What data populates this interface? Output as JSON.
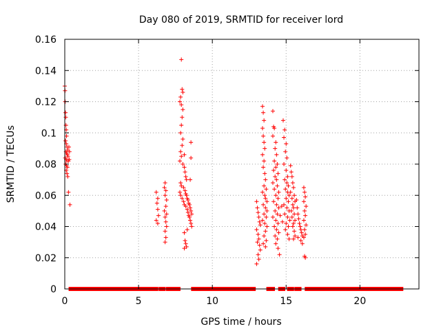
{
  "chart_data": {
    "type": "scatter",
    "title": "Day 080 of 2019, SRMTID for receiver lord",
    "xlabel": "GPS time / hours",
    "ylabel": "SRMTID / TECUs",
    "xlim": [
      0,
      24
    ],
    "ylim": [
      0,
      0.16
    ],
    "xticks": [
      0,
      5,
      10,
      15,
      20
    ],
    "xtick_labels": [
      "0",
      "5",
      "10",
      "15",
      "20"
    ],
    "yticks": [
      0,
      0.02,
      0.04,
      0.06,
      0.08,
      0.1,
      0.12,
      0.14,
      0.16
    ],
    "ytick_labels": [
      "0",
      "0.02",
      "0.04",
      "0.06",
      "0.08",
      "0.1",
      "0.12",
      "0.14",
      "0.16"
    ],
    "grid": true,
    "marker": "+",
    "color": "#ff0000",
    "series": [
      {
        "name": "SRMTID",
        "zero_runs": [
          [
            0.4,
            6.2
          ],
          [
            6.5,
            6.7
          ],
          [
            7.0,
            7.7
          ],
          [
            8.7,
            12.8
          ],
          [
            13.8,
            14.1
          ],
          [
            14.6,
            14.8
          ],
          [
            15.2,
            15.4
          ],
          [
            15.7,
            15.9
          ],
          [
            16.4,
            22.8
          ]
        ],
        "points": [
          [
            0.0,
            0.13
          ],
          [
            0.02,
            0.127
          ],
          [
            0.03,
            0.12
          ],
          [
            0.05,
            0.113
          ],
          [
            0.07,
            0.11
          ],
          [
            0.08,
            0.105
          ],
          [
            0.1,
            0.102
          ],
          [
            0.12,
            0.098
          ],
          [
            0.05,
            0.095
          ],
          [
            0.1,
            0.093
          ],
          [
            0.15,
            0.091
          ],
          [
            0.2,
            0.089
          ],
          [
            0.08,
            0.088
          ],
          [
            0.12,
            0.087
          ],
          [
            0.18,
            0.086
          ],
          [
            0.22,
            0.085
          ],
          [
            0.03,
            0.084
          ],
          [
            0.1,
            0.083
          ],
          [
            0.15,
            0.082
          ],
          [
            0.25,
            0.082
          ],
          [
            0.06,
            0.08
          ],
          [
            0.12,
            0.079
          ],
          [
            0.18,
            0.078
          ],
          [
            0.1,
            0.076
          ],
          [
            0.15,
            0.074
          ],
          [
            0.2,
            0.072
          ],
          [
            0.3,
            0.083
          ],
          [
            0.32,
            0.088
          ],
          [
            0.28,
            0.091
          ],
          [
            0.25,
            0.062
          ],
          [
            0.35,
            0.054
          ],
          [
            6.2,
            0.062
          ],
          [
            6.3,
            0.058
          ],
          [
            6.25,
            0.055
          ],
          [
            6.3,
            0.051
          ],
          [
            6.35,
            0.047
          ],
          [
            6.2,
            0.044
          ],
          [
            6.3,
            0.042
          ],
          [
            6.8,
            0.068
          ],
          [
            6.75,
            0.065
          ],
          [
            6.85,
            0.063
          ],
          [
            6.8,
            0.06
          ],
          [
            6.9,
            0.057
          ],
          [
            6.85,
            0.053
          ],
          [
            6.75,
            0.05
          ],
          [
            6.9,
            0.048
          ],
          [
            6.8,
            0.046
          ],
          [
            6.85,
            0.043
          ],
          [
            6.9,
            0.04
          ],
          [
            6.8,
            0.037
          ],
          [
            6.85,
            0.033
          ],
          [
            6.8,
            0.03
          ],
          [
            7.9,
            0.147
          ],
          [
            7.95,
            0.128
          ],
          [
            8.0,
            0.126
          ],
          [
            7.85,
            0.123
          ],
          [
            7.8,
            0.12
          ],
          [
            7.9,
            0.118
          ],
          [
            8.0,
            0.115
          ],
          [
            7.95,
            0.11
          ],
          [
            7.9,
            0.105
          ],
          [
            7.85,
            0.1
          ],
          [
            8.0,
            0.096
          ],
          [
            7.95,
            0.092
          ],
          [
            7.85,
            0.088
          ],
          [
            7.9,
            0.085
          ],
          [
            7.8,
            0.082
          ],
          [
            8.0,
            0.08
          ],
          [
            8.1,
            0.086
          ],
          [
            8.1,
            0.078
          ],
          [
            8.15,
            0.075
          ],
          [
            8.2,
            0.072
          ],
          [
            8.25,
            0.07
          ],
          [
            7.85,
            0.068
          ],
          [
            7.9,
            0.066
          ],
          [
            8.05,
            0.065
          ],
          [
            8.15,
            0.063
          ],
          [
            8.2,
            0.061
          ],
          [
            8.25,
            0.06
          ],
          [
            8.3,
            0.058
          ],
          [
            8.35,
            0.057
          ],
          [
            8.4,
            0.055
          ],
          [
            8.45,
            0.054
          ],
          [
            8.5,
            0.052
          ],
          [
            8.55,
            0.05
          ],
          [
            8.6,
            0.048
          ],
          [
            7.8,
            0.062
          ],
          [
            7.85,
            0.06
          ],
          [
            7.95,
            0.058
          ],
          [
            8.05,
            0.056
          ],
          [
            8.1,
            0.054
          ],
          [
            8.2,
            0.053
          ],
          [
            8.3,
            0.051
          ],
          [
            8.35,
            0.049
          ],
          [
            8.4,
            0.047
          ],
          [
            8.45,
            0.046
          ],
          [
            8.5,
            0.044
          ],
          [
            8.55,
            0.042
          ],
          [
            8.6,
            0.04
          ],
          [
            8.3,
            0.038
          ],
          [
            8.1,
            0.036
          ],
          [
            8.15,
            0.031
          ],
          [
            8.2,
            0.029
          ],
          [
            8.25,
            0.027
          ],
          [
            8.1,
            0.026
          ],
          [
            8.55,
            0.084
          ],
          [
            8.55,
            0.094
          ],
          [
            8.5,
            0.07
          ],
          [
            13.0,
            0.056
          ],
          [
            13.05,
            0.052
          ],
          [
            13.1,
            0.049
          ],
          [
            13.15,
            0.046
          ],
          [
            13.2,
            0.043
          ],
          [
            13.25,
            0.041
          ],
          [
            13.0,
            0.038
          ],
          [
            13.1,
            0.035
          ],
          [
            13.15,
            0.032
          ],
          [
            13.05,
            0.03
          ],
          [
            13.2,
            0.028
          ],
          [
            13.25,
            0.025
          ],
          [
            13.1,
            0.022
          ],
          [
            13.15,
            0.019
          ],
          [
            13.0,
            0.016
          ],
          [
            13.4,
            0.117
          ],
          [
            13.45,
            0.113
          ],
          [
            13.5,
            0.108
          ],
          [
            13.4,
            0.103
          ],
          [
            13.45,
            0.098
          ],
          [
            13.5,
            0.094
          ],
          [
            13.55,
            0.09
          ],
          [
            13.4,
            0.086
          ],
          [
            13.5,
            0.082
          ],
          [
            13.45,
            0.078
          ],
          [
            13.55,
            0.074
          ],
          [
            13.6,
            0.07
          ],
          [
            13.5,
            0.066
          ],
          [
            13.65,
            0.064
          ],
          [
            13.4,
            0.062
          ],
          [
            13.55,
            0.06
          ],
          [
            13.6,
            0.058
          ],
          [
            13.7,
            0.056
          ],
          [
            13.45,
            0.054
          ],
          [
            13.6,
            0.052
          ],
          [
            13.7,
            0.05
          ],
          [
            13.5,
            0.048
          ],
          [
            13.65,
            0.046
          ],
          [
            13.4,
            0.044
          ],
          [
            13.55,
            0.042
          ],
          [
            13.7,
            0.04
          ],
          [
            13.6,
            0.037
          ],
          [
            13.5,
            0.034
          ],
          [
            13.65,
            0.031
          ],
          [
            13.45,
            0.029
          ],
          [
            13.6,
            0.027
          ],
          [
            14.1,
            0.114
          ],
          [
            14.15,
            0.104
          ],
          [
            14.2,
            0.103
          ],
          [
            14.1,
            0.098
          ],
          [
            14.3,
            0.094
          ],
          [
            14.25,
            0.09
          ],
          [
            14.35,
            0.086
          ],
          [
            14.2,
            0.082
          ],
          [
            14.4,
            0.08
          ],
          [
            14.3,
            0.078
          ],
          [
            14.15,
            0.076
          ],
          [
            14.45,
            0.074
          ],
          [
            14.25,
            0.072
          ],
          [
            14.35,
            0.07
          ],
          [
            14.1,
            0.068
          ],
          [
            14.4,
            0.066
          ],
          [
            14.2,
            0.064
          ],
          [
            14.5,
            0.062
          ],
          [
            14.3,
            0.06
          ],
          [
            14.45,
            0.058
          ],
          [
            14.15,
            0.056
          ],
          [
            14.35,
            0.054
          ],
          [
            14.5,
            0.052
          ],
          [
            14.25,
            0.05
          ],
          [
            14.4,
            0.048
          ],
          [
            14.1,
            0.046
          ],
          [
            14.3,
            0.044
          ],
          [
            14.45,
            0.042
          ],
          [
            14.2,
            0.04
          ],
          [
            14.35,
            0.038
          ],
          [
            14.5,
            0.036
          ],
          [
            14.25,
            0.034
          ],
          [
            14.4,
            0.032
          ],
          [
            14.3,
            0.029
          ],
          [
            14.45,
            0.026
          ],
          [
            14.55,
            0.022
          ],
          [
            14.6,
            0.047
          ],
          [
            14.7,
            0.053
          ],
          [
            14.75,
            0.043
          ],
          [
            14.8,
            0.108
          ],
          [
            14.9,
            0.102
          ],
          [
            14.85,
            0.097
          ],
          [
            15.0,
            0.093
          ],
          [
            14.95,
            0.088
          ],
          [
            15.05,
            0.084
          ],
          [
            14.85,
            0.08
          ],
          [
            15.0,
            0.076
          ],
          [
            15.1,
            0.072
          ],
          [
            14.9,
            0.07
          ],
          [
            15.05,
            0.068
          ],
          [
            15.15,
            0.066
          ],
          [
            14.95,
            0.064
          ],
          [
            15.1,
            0.062
          ],
          [
            15.2,
            0.06
          ],
          [
            15.0,
            0.058
          ],
          [
            15.15,
            0.056
          ],
          [
            14.85,
            0.054
          ],
          [
            15.05,
            0.052
          ],
          [
            15.2,
            0.05
          ],
          [
            14.9,
            0.048
          ],
          [
            15.1,
            0.046
          ],
          [
            15.25,
            0.044
          ],
          [
            15.0,
            0.042
          ],
          [
            15.15,
            0.04
          ],
          [
            14.95,
            0.038
          ],
          [
            15.1,
            0.035
          ],
          [
            15.2,
            0.032
          ],
          [
            15.3,
            0.079
          ],
          [
            15.35,
            0.075
          ],
          [
            15.4,
            0.072
          ],
          [
            15.45,
            0.068
          ],
          [
            15.5,
            0.065
          ],
          [
            15.3,
            0.062
          ],
          [
            15.55,
            0.06
          ],
          [
            15.4,
            0.058
          ],
          [
            15.6,
            0.056
          ],
          [
            15.45,
            0.054
          ],
          [
            15.5,
            0.052
          ],
          [
            15.35,
            0.05
          ],
          [
            15.55,
            0.048
          ],
          [
            15.4,
            0.046
          ],
          [
            15.6,
            0.044
          ],
          [
            15.5,
            0.042
          ],
          [
            15.45,
            0.04
          ],
          [
            15.55,
            0.037
          ],
          [
            15.6,
            0.034
          ],
          [
            15.5,
            0.032
          ],
          [
            15.7,
            0.057
          ],
          [
            15.75,
            0.052
          ],
          [
            15.8,
            0.048
          ],
          [
            15.85,
            0.045
          ],
          [
            15.9,
            0.042
          ],
          [
            15.95,
            0.04
          ],
          [
            16.0,
            0.038
          ],
          [
            16.05,
            0.036
          ],
          [
            16.1,
            0.034
          ],
          [
            15.8,
            0.033
          ],
          [
            16.0,
            0.031
          ],
          [
            16.1,
            0.029
          ],
          [
            16.2,
            0.065
          ],
          [
            16.25,
            0.062
          ],
          [
            16.3,
            0.059
          ],
          [
            16.2,
            0.056
          ],
          [
            16.35,
            0.053
          ],
          [
            16.25,
            0.05
          ],
          [
            16.3,
            0.047
          ],
          [
            16.2,
            0.044
          ],
          [
            16.35,
            0.041
          ],
          [
            16.25,
            0.038
          ],
          [
            16.3,
            0.035
          ],
          [
            16.2,
            0.033
          ],
          [
            16.25,
            0.021
          ],
          [
            16.3,
            0.02
          ]
        ]
      }
    ]
  }
}
